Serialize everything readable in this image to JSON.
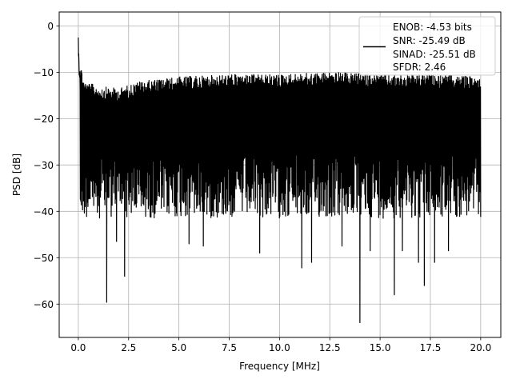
{
  "chart_data": {
    "type": "line",
    "title": "",
    "xlabel": "Frequency [MHz]",
    "ylabel": "PSD [dB]",
    "xlim": [
      -0.95,
      21.0
    ],
    "ylim": [
      -67.2,
      3.0
    ],
    "grid": true,
    "xticks": [
      0.0,
      2.5,
      5.0,
      7.5,
      10.0,
      12.5,
      15.0,
      17.5,
      20.0
    ],
    "xtick_labels": [
      "0.0",
      "2.5",
      "5.0",
      "7.5",
      "10.0",
      "12.5",
      "15.0",
      "17.5",
      "20.0"
    ],
    "yticks": [
      0,
      -10,
      -20,
      -30,
      -40,
      -50,
      -60
    ],
    "ytick_labels": [
      "0",
      "−10",
      "−20",
      "−30",
      "−40",
      "−50",
      "−60"
    ],
    "legend": {
      "placement": "top-right",
      "lines": [
        "ENOB: -4.53 bits",
        "SNR: -25.49 dB",
        "SINAD: -25.51 dB",
        "SFDR: 2.46"
      ]
    },
    "series": [
      {
        "color": "#000000",
        "x_start": 0.0,
        "x_end": 20.0,
        "points": 1800,
        "dc_peak": -2.5,
        "noise_floor_mean": -21.5,
        "upper_envelope": [
          [
            0.0,
            -2.5
          ],
          [
            0.1,
            -8.0
          ],
          [
            0.3,
            -12.0
          ],
          [
            1.0,
            -13.0
          ],
          [
            2.0,
            -13.5
          ],
          [
            3.0,
            -12.0
          ],
          [
            4.0,
            -11.5
          ],
          [
            5.0,
            -11.0
          ],
          [
            7.5,
            -10.5
          ],
          [
            10.0,
            -10.5
          ],
          [
            12.5,
            -10.0
          ],
          [
            15.0,
            -10.5
          ],
          [
            17.5,
            -10.5
          ],
          [
            20.0,
            -11.0
          ]
        ],
        "deep_dips": [
          [
            1.4,
            -59.6
          ],
          [
            2.3,
            -54.0
          ],
          [
            5.5,
            -47.0
          ],
          [
            6.2,
            -47.5
          ],
          [
            9.0,
            -49.0
          ],
          [
            11.1,
            -52.2
          ],
          [
            11.6,
            -51.0
          ],
          [
            13.1,
            -47.5
          ],
          [
            14.0,
            -64.0
          ],
          [
            14.5,
            -48.5
          ],
          [
            15.7,
            -58.0
          ],
          [
            16.1,
            -48.5
          ],
          [
            16.9,
            -51.0
          ],
          [
            17.2,
            -56.0
          ],
          [
            17.7,
            -51.0
          ],
          [
            18.4,
            -48.5
          ],
          [
            1.9,
            -46.5
          ]
        ]
      }
    ]
  }
}
